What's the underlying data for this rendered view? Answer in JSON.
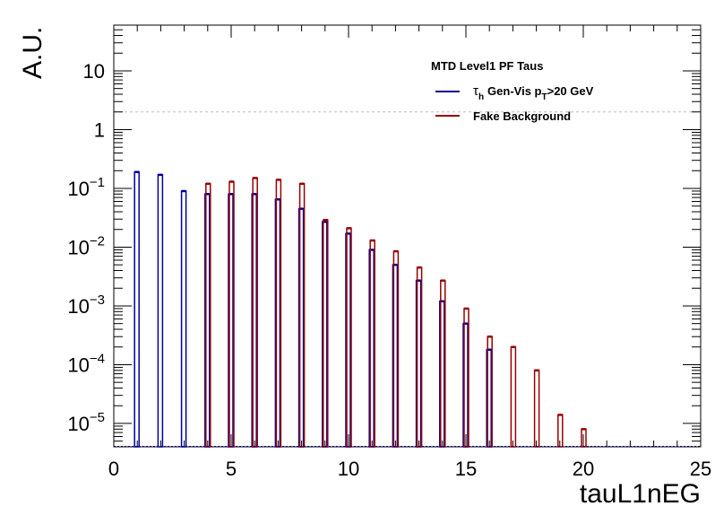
{
  "chart_data": {
    "type": "bar",
    "xlabel": "tauL1nEG",
    "ylabel": "A.U.",
    "xlim": [
      0,
      25
    ],
    "ylim": [
      4e-06,
      60
    ],
    "yscale": "log",
    "grid": false,
    "legend_placement": "top-right",
    "legend": {
      "title": "MTD Level1 PF Taus",
      "entries": [
        {
          "text": "Gen-Vis p>20 GeV",
          "tau": "τ",
          "tau_sub": "h",
          "pt_sub": "T",
          "color": "#000099"
        },
        {
          "text": "Fake Background",
          "color": "#990000"
        }
      ]
    },
    "x_ticks": [
      "0",
      "5",
      "10",
      "15",
      "20",
      "25"
    ],
    "y_ticks": [
      {
        "value": 1e-05,
        "label_base": "10",
        "label_exp": "−5"
      },
      {
        "value": 0.0001,
        "label_base": "10",
        "label_exp": "−4"
      },
      {
        "value": 0.001,
        "label_base": "10",
        "label_exp": "−3"
      },
      {
        "value": 0.01,
        "label_base": "10",
        "label_exp": "−2"
      },
      {
        "value": 0.1,
        "label_base": "10",
        "label_exp": "−1"
      },
      {
        "value": 1,
        "label_base": "1",
        "label_exp": ""
      },
      {
        "value": 10,
        "label_base": "10",
        "label_exp": ""
      }
    ],
    "reference_line": {
      "y": 2,
      "style": "dashed"
    },
    "series": [
      {
        "name": "τh Gen-Vis pT>20 GeV",
        "color": "#000099",
        "x": [
          1,
          2,
          3,
          4,
          5,
          6,
          7,
          8,
          9,
          10,
          11,
          12,
          13,
          14,
          15,
          16
        ],
        "values": [
          0.19,
          0.17,
          0.09,
          0.08,
          0.08,
          0.08,
          0.065,
          0.045,
          0.027,
          0.017,
          0.009,
          0.005,
          0.0027,
          0.0012,
          0.0005,
          0.00018
        ]
      },
      {
        "name": "Fake Background",
        "color": "#990000",
        "x": [
          4,
          5,
          6,
          7,
          8,
          9,
          10,
          11,
          12,
          13,
          14,
          15,
          16,
          17,
          18,
          19,
          20
        ],
        "values": [
          0.12,
          0.13,
          0.15,
          0.14,
          0.12,
          0.029,
          0.021,
          0.013,
          0.0085,
          0.0045,
          0.0027,
          0.0009,
          0.0003,
          0.0002,
          8e-05,
          1.4e-05,
          8e-06
        ]
      }
    ]
  }
}
